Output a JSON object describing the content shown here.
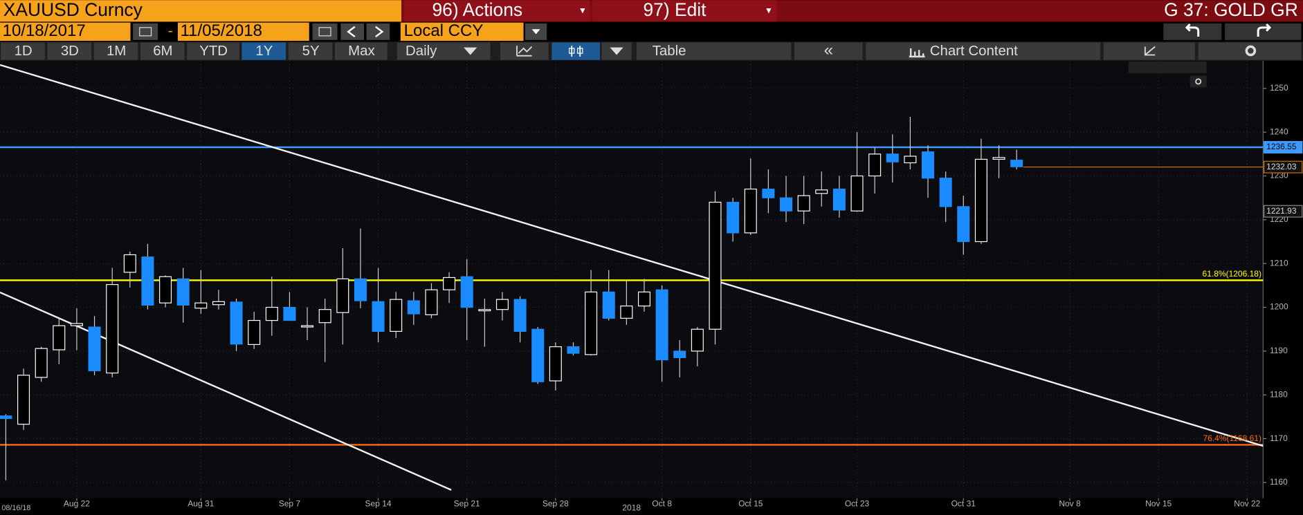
{
  "toolbar": {
    "security": "XAUUSD Curncy",
    "actions": "96) Actions",
    "edit": "97) Edit",
    "page": "G 37: GOLD GR",
    "start_date": "10/18/2017",
    "end_date": "11/05/2018",
    "currency": "Local CCY",
    "periods": [
      "1D",
      "3D",
      "1M",
      "6M",
      "YTD",
      "1Y",
      "5Y",
      "Max"
    ],
    "frequency": "Daily",
    "table": "Table",
    "chart_content": "Chart Content"
  },
  "chart_data": {
    "type": "candlestick",
    "start_label": "08/16/18",
    "year_label": "2018",
    "categories": [
      null,
      null,
      null,
      null,
      "Aug 22",
      null,
      null,
      null,
      null,
      null,
      null,
      "Aug 31",
      null,
      null,
      null,
      null,
      "Sep 7",
      null,
      null,
      null,
      null,
      "Sep 14",
      null,
      null,
      null,
      null,
      "Sep 21",
      null,
      null,
      null,
      null,
      "Sep 28",
      null,
      null,
      null,
      null,
      null,
      "Oct 8",
      null,
      null,
      null,
      null,
      "Oct 15",
      null,
      null,
      null,
      null,
      null,
      "Oct 23",
      null,
      null,
      null,
      null,
      null,
      "Oct 31",
      null,
      null,
      null,
      null,
      null,
      "Nov 8",
      null,
      null,
      null,
      null,
      "Nov 15",
      null,
      null,
      null,
      null,
      "Nov 22"
    ],
    "open": [
      1175.2,
      1173.3,
      1184,
      1190.3,
      1195.8,
      1195.5,
      1185,
      1208,
      1211.5,
      1201,
      1206.5,
      1199.8,
      1200.6,
      1201.2,
      1191.5,
      1197,
      1200,
      1195.5,
      1196.5,
      1198.8,
      1206.5,
      1201.3,
      1194.5,
      1201.5,
      1198.3,
      1204,
      1207,
      1199.2,
      1199.5,
      1201.8,
      1195,
      1183.2,
      1191,
      1189.2,
      1203.5,
      1197.5,
      1200.3,
      1204,
      1190,
      1190,
      1195,
      1224,
      1217,
      1227,
      1225,
      1222,
      1226,
      1227,
      1222,
      1230,
      1235,
      1233,
      1235.5,
      1229.5,
      1223,
      1215,
      1233.8,
      1233.6,
      null,
      null,
      null,
      null,
      null,
      null,
      null,
      null,
      null,
      null,
      null,
      null,
      null
    ],
    "high": [
      1175.6,
      1186,
      1191,
      1197.5,
      1199.8,
      1198,
      1209,
      1212.7,
      1214.5,
      1207.3,
      1209,
      1208.5,
      1204,
      1202,
      1199,
      1207,
      1203.5,
      1200,
      1202,
      1213.5,
      1218,
      1209,
      1203.5,
      1203.5,
      1205.5,
      1208,
      1211,
      1202,
      1203.5,
      1202.5,
      1195.5,
      1192,
      1192,
      1208.5,
      1208.5,
      1206,
      1206.5,
      1205,
      1192.5,
      1195.5,
      1226.5,
      1225,
      1234,
      1231.5,
      1230,
      1230,
      1231,
      1230,
      1240,
      1236.5,
      1239.5,
      1243.5,
      1237,
      1231,
      1225.5,
      1238.5,
      1237,
      1236,
      null,
      null,
      null,
      null,
      null,
      null,
      null,
      null,
      null,
      null,
      null,
      null,
      null
    ],
    "low": [
      1160.5,
      1172,
      1183,
      1187,
      1190.2,
      1184.5,
      1184,
      1204.5,
      1199.5,
      1200,
      1196.5,
      1198.5,
      1199.5,
      1190,
      1190.5,
      1193.5,
      1197,
      1192.5,
      1187.5,
      1191.5,
      1199.8,
      1192,
      1193,
      1196,
      1197.5,
      1201,
      1192.5,
      1191,
      1197,
      1192,
      1182.5,
      1181,
      1189,
      1189,
      1197,
      1196,
      1199,
      1183,
      1184,
      1186.5,
      1191.5,
      1215,
      1216.5,
      1221.5,
      1219.5,
      1219,
      1223,
      1220.5,
      1221.8,
      1226,
      1228.5,
      1231.5,
      1225,
      1219.5,
      1212,
      1214.5,
      1229.5,
      1231.5,
      null,
      null,
      null,
      null,
      null,
      null,
      null,
      null,
      null,
      null,
      null,
      null,
      null
    ],
    "close": [
      1174.6,
      1184.5,
      1190.6,
      1195.8,
      1196.3,
      1185.5,
      1205.2,
      1212,
      1200.5,
      1207,
      1200.5,
      1201,
      1201.3,
      1191.6,
      1197,
      1200,
      1197,
      1195.8,
      1199.5,
      1206.5,
      1201.5,
      1194.5,
      1201.8,
      1198.5,
      1204,
      1206.8,
      1200,
      1199.5,
      1201.8,
      1194.5,
      1183,
      1191,
      1189.5,
      1203.5,
      1197.5,
      1200.3,
      1203.5,
      1188,
      1188.5,
      1195,
      1224,
      1217,
      1227,
      1225,
      1222,
      1225.5,
      1226.8,
      1222.2,
      1230,
      1235,
      1233.2,
      1234.5,
      1229.5,
      1223,
      1215,
      1233.8,
      1234.2,
      1232.1,
      null,
      null,
      null,
      null,
      null,
      null,
      null,
      null,
      null,
      null,
      null,
      null,
      null
    ],
    "up_color": "#ffffff",
    "down_color": "#1a8cff",
    "ylim": [
      1156.4,
      1256.3
    ],
    "yticks": [
      1160,
      1170,
      1180,
      1190,
      1200,
      1210,
      1220,
      1230,
      1240,
      1250
    ],
    "grid": true,
    "markers": [
      {
        "value": 1236.55,
        "color": "#3c9aff",
        "line": "full"
      },
      {
        "value": 1232.03,
        "color": "#d07000",
        "line": "last"
      },
      {
        "value": 1221.93,
        "color": "#8a8a8a"
      }
    ],
    "fib_levels": [
      {
        "value": 1206.18,
        "label": "61.8%(1206.18)",
        "color": "#ffff00"
      },
      {
        "value": 1168.61,
        "label": "76.4%(1168.61)",
        "color": "#ff6a13"
      }
    ]
  }
}
